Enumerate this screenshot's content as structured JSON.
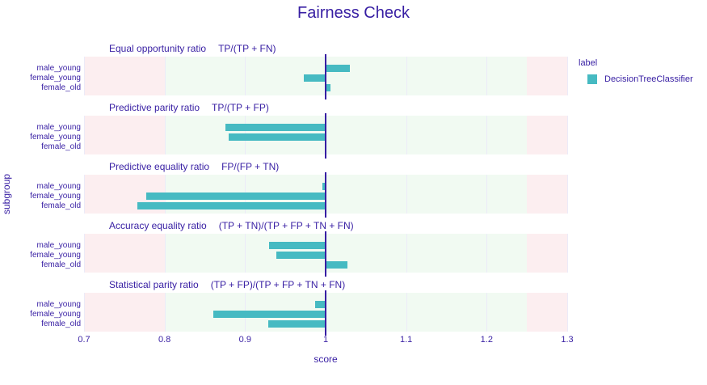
{
  "title": "Fairness Check",
  "colors": {
    "bar": "#46bac2",
    "reference_line": "#371ea3",
    "text": "#371ea3",
    "band_red": "#fceef0",
    "band_green": "#f1faf2",
    "gridline": "#ecebf8"
  },
  "legend": {
    "title": "label",
    "entries": [
      {
        "label": "DecisionTreeClassifier",
        "color": "#46bac2"
      }
    ]
  },
  "chart_data": {
    "type": "bar",
    "orientation": "horizontal",
    "base": 1.0,
    "title": "Fairness Check",
    "xlabel": "score",
    "ylabel": "subgroup",
    "xlim": [
      0.7,
      1.3
    ],
    "xticks": [
      "0.7",
      "0.8",
      "0.9",
      "1",
      "1.1",
      "1.2",
      "1.3"
    ],
    "xtick_values": [
      0.7,
      0.8,
      0.9,
      1.0,
      1.1,
      1.2,
      1.3
    ],
    "grid": true,
    "legend_position": "right",
    "categories": [
      "male_young",
      "female_young",
      "female_old"
    ],
    "series_label": "DecisionTreeClassifier",
    "bands": [
      {
        "from": 0.7,
        "to": 0.8,
        "color": "red"
      },
      {
        "from": 0.8,
        "to": 1.25,
        "color": "green"
      },
      {
        "from": 1.25,
        "to": 1.3,
        "color": "red"
      }
    ],
    "panels": [
      {
        "metric": "Equal opportunity ratio",
        "formula": "TP/(TP + FN)",
        "values": [
          1.03,
          0.973,
          1.006
        ]
      },
      {
        "metric": "Predictive parity ratio",
        "formula": "TP/(TP + FP)",
        "values": [
          0.876,
          0.88,
          1.0
        ]
      },
      {
        "metric": "Predictive equality ratio",
        "formula": "FP/(FP + TN)",
        "values": [
          0.996,
          0.777,
          0.766
        ]
      },
      {
        "metric": "Accuracy equality ratio",
        "formula": "(TP + TN)/(TP + FP + TN + FN)",
        "values": [
          0.93,
          0.939,
          1.027
        ]
      },
      {
        "metric": "Statistical parity ratio",
        "formula": "(TP + FP)/(TP + FP + TN + FN)",
        "values": [
          0.987,
          0.861,
          0.929
        ]
      }
    ]
  }
}
